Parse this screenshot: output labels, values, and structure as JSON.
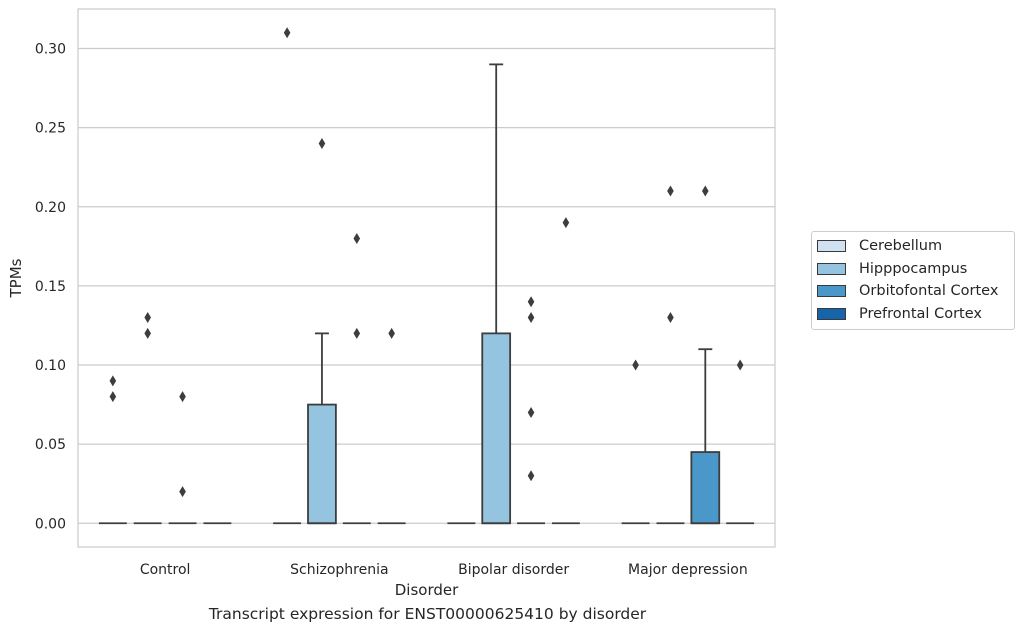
{
  "caption": "Transcript expression for ENST00000625410 by disorder",
  "chart_data": {
    "type": "box",
    "xlabel": "Disorder",
    "ylabel": "TPMs",
    "ylim": [
      -0.015,
      0.325
    ],
    "yticks": [
      "0.00",
      "0.05",
      "0.10",
      "0.15",
      "0.20",
      "0.25",
      "0.30"
    ],
    "grid": true,
    "legend_position": "right",
    "categories": [
      "Control",
      "Schizophrenia",
      "Bipolar disorder",
      "Major depression"
    ],
    "series": [
      {
        "name": "Cerebellum",
        "color": "#d0e1f2"
      },
      {
        "name": "Hipppocampus",
        "color": "#94c4df"
      },
      {
        "name": "Orbitofontal Cortex",
        "color": "#4a98c9"
      },
      {
        "name": "Prefrontal Cortex",
        "color": "#1764ab"
      }
    ],
    "boxes": [
      {
        "category": "Control",
        "series": "Cerebellum",
        "q1": 0,
        "median": 0,
        "q3": 0,
        "whisker_low": 0,
        "whisker_high": 0,
        "outliers": [
          0.09,
          0.08
        ]
      },
      {
        "category": "Control",
        "series": "Hipppocampus",
        "q1": 0,
        "median": 0,
        "q3": 0,
        "whisker_low": 0,
        "whisker_high": 0,
        "outliers": [
          0.13,
          0.12
        ]
      },
      {
        "category": "Control",
        "series": "Orbitofontal Cortex",
        "q1": 0,
        "median": 0,
        "q3": 0,
        "whisker_low": 0,
        "whisker_high": 0,
        "outliers": [
          0.08,
          0.02
        ]
      },
      {
        "category": "Control",
        "series": "Prefrontal Cortex",
        "q1": 0,
        "median": 0,
        "q3": 0,
        "whisker_low": 0,
        "whisker_high": 0,
        "outliers": []
      },
      {
        "category": "Schizophrenia",
        "series": "Cerebellum",
        "q1": 0,
        "median": 0,
        "q3": 0,
        "whisker_low": 0,
        "whisker_high": 0,
        "outliers": [
          0.31
        ]
      },
      {
        "category": "Schizophrenia",
        "series": "Hipppocampus",
        "q1": 0,
        "median": 0,
        "q3": 0.075,
        "whisker_low": 0,
        "whisker_high": 0.12,
        "outliers": [
          0.24
        ]
      },
      {
        "category": "Schizophrenia",
        "series": "Orbitofontal Cortex",
        "q1": 0,
        "median": 0,
        "q3": 0,
        "whisker_low": 0,
        "whisker_high": 0,
        "outliers": [
          0.18,
          0.12
        ]
      },
      {
        "category": "Schizophrenia",
        "series": "Prefrontal Cortex",
        "q1": 0,
        "median": 0,
        "q3": 0,
        "whisker_low": 0,
        "whisker_high": 0,
        "outliers": [
          0.12
        ]
      },
      {
        "category": "Bipolar disorder",
        "series": "Cerebellum",
        "q1": 0,
        "median": 0,
        "q3": 0,
        "whisker_low": 0,
        "whisker_high": 0,
        "outliers": []
      },
      {
        "category": "Bipolar disorder",
        "series": "Hipppocampus",
        "q1": 0,
        "median": 0,
        "q3": 0.12,
        "whisker_low": 0,
        "whisker_high": 0.29,
        "outliers": []
      },
      {
        "category": "Bipolar disorder",
        "series": "Orbitofontal Cortex",
        "q1": 0,
        "median": 0,
        "q3": 0,
        "whisker_low": 0,
        "whisker_high": 0,
        "outliers": [
          0.14,
          0.13,
          0.07,
          0.03
        ]
      },
      {
        "category": "Bipolar disorder",
        "series": "Prefrontal Cortex",
        "q1": 0,
        "median": 0,
        "q3": 0,
        "whisker_low": 0,
        "whisker_high": 0,
        "outliers": [
          0.19
        ]
      },
      {
        "category": "Major depression",
        "series": "Cerebellum",
        "q1": 0,
        "median": 0,
        "q3": 0,
        "whisker_low": 0,
        "whisker_high": 0,
        "outliers": [
          0.1
        ]
      },
      {
        "category": "Major depression",
        "series": "Hipppocampus",
        "q1": 0,
        "median": 0,
        "q3": 0,
        "whisker_low": 0,
        "whisker_high": 0,
        "outliers": [
          0.21,
          0.13
        ]
      },
      {
        "category": "Major depression",
        "series": "Orbitofontal Cortex",
        "q1": 0,
        "median": 0,
        "q3": 0.045,
        "whisker_low": 0,
        "whisker_high": 0.11,
        "outliers": [
          0.21
        ]
      },
      {
        "category": "Major depression",
        "series": "Prefrontal Cortex",
        "q1": 0,
        "median": 0,
        "q3": 0,
        "whisker_low": 0,
        "whisker_high": 0,
        "outliers": [
          0.1
        ]
      }
    ]
  }
}
